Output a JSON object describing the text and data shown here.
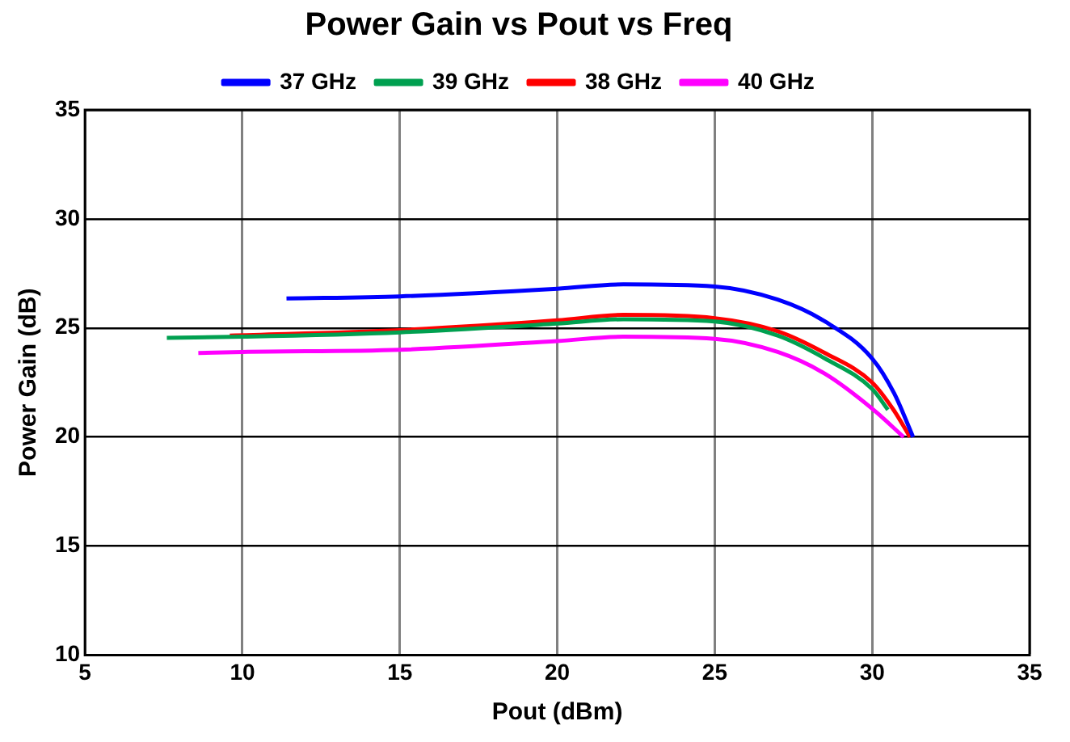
{
  "chart_data": {
    "type": "line",
    "title": "Power Gain vs Pout vs Freq",
    "xlabel": "Pout (dBm)",
    "ylabel": "Power Gain (dB)",
    "xlim": [
      5,
      35
    ],
    "xticks": [
      5,
      10,
      15,
      20,
      25,
      30,
      35
    ],
    "ylim": [
      10,
      35
    ],
    "yticks": [
      10,
      15,
      20,
      25,
      30,
      35
    ],
    "grid": true,
    "legend": "top",
    "marker": "none",
    "line_style": "solid",
    "series": [
      {
        "name": "37 GHz",
        "color": "#0000ff",
        "x": [
          11.4,
          15,
          20,
          22.1,
          25,
          27,
          28.5,
          30,
          30.7,
          31.3
        ],
        "values": [
          26.35,
          26.45,
          26.8,
          27.0,
          26.9,
          26.3,
          25.3,
          23.6,
          22.0,
          20.0
        ]
      },
      {
        "name": "39 GHz",
        "color": "#00a050",
        "x": [
          7.6,
          10,
          15,
          20,
          22.1,
          25,
          27,
          28.5,
          30,
          30.5
        ],
        "values": [
          24.55,
          24.6,
          24.8,
          25.2,
          25.4,
          25.3,
          24.65,
          23.6,
          22.2,
          21.25
        ]
      },
      {
        "name": "38 GHz",
        "color": "#ff0000",
        "x": [
          9.6,
          15,
          20,
          22.1,
          25,
          27,
          28.5,
          30,
          30.7,
          31.2
        ],
        "values": [
          24.65,
          24.9,
          25.35,
          25.6,
          25.45,
          24.85,
          23.85,
          22.5,
          21.2,
          20.0
        ]
      },
      {
        "name": "40 GHz",
        "color": "#ff00ff",
        "x": [
          8.6,
          10,
          15,
          20,
          22.1,
          25,
          27,
          28.5,
          30,
          31.0
        ],
        "values": [
          23.85,
          23.9,
          24.0,
          24.4,
          24.6,
          24.5,
          23.9,
          22.9,
          21.3,
          20.0
        ]
      }
    ]
  }
}
